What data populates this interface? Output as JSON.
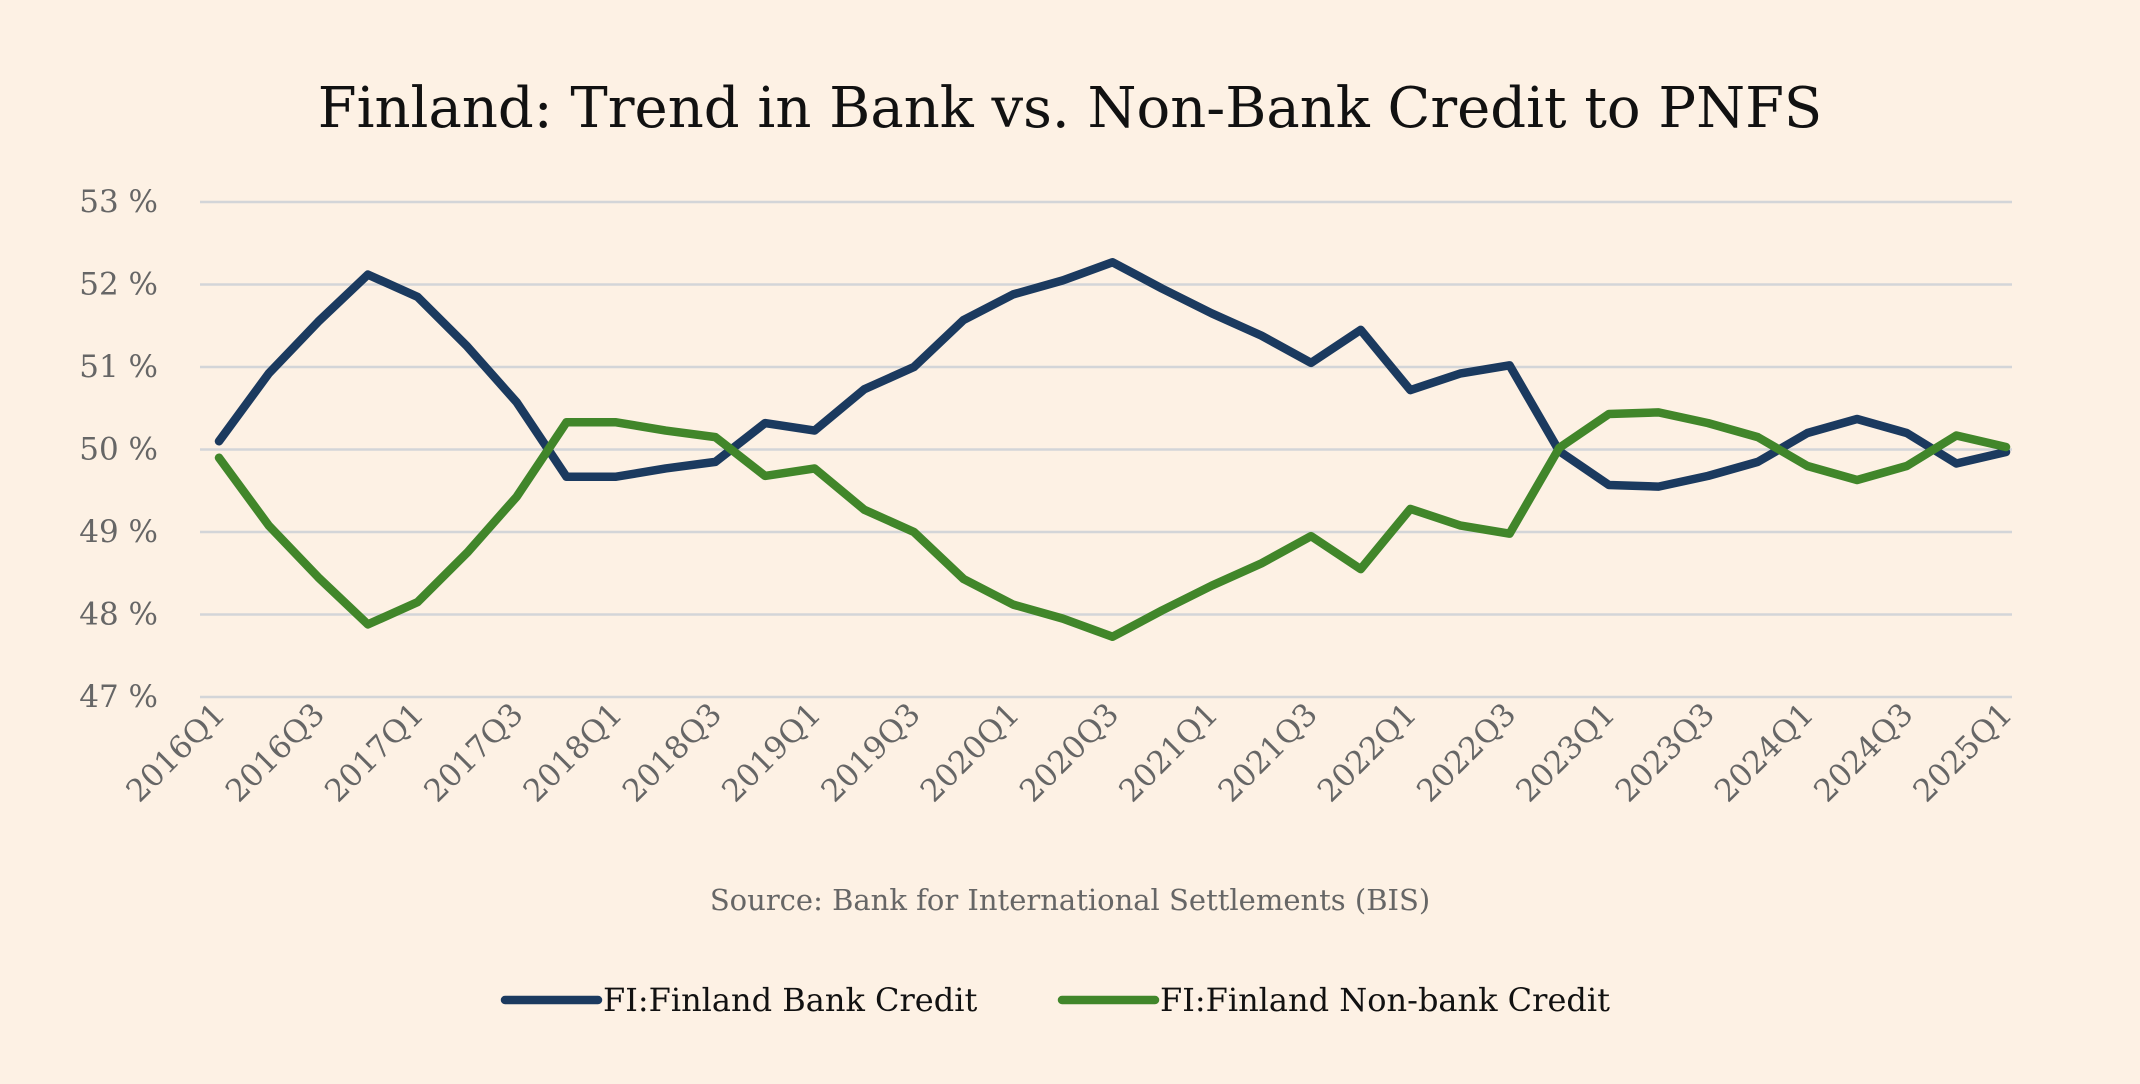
{
  "chart_data": {
    "type": "line",
    "title": "Finland: Trend in Bank vs. Non-Bank Credit to PNFS",
    "source": "Source: Bank for International Settlements (BIS)",
    "xlabel": "",
    "ylabel": "",
    "ylim": [
      47,
      53
    ],
    "yticks": [
      47,
      48,
      49,
      50,
      51,
      52,
      53
    ],
    "ytick_suffix": " %",
    "grid": true,
    "legend_position": "bottom",
    "categories": [
      "2016Q1",
      "2016Q2",
      "2016Q3",
      "2016Q4",
      "2017Q1",
      "2017Q2",
      "2017Q3",
      "2017Q4",
      "2018Q1",
      "2018Q2",
      "2018Q3",
      "2018Q4",
      "2019Q1",
      "2019Q2",
      "2019Q3",
      "2019Q4",
      "2020Q1",
      "2020Q2",
      "2020Q3",
      "2020Q4",
      "2021Q1",
      "2021Q2",
      "2021Q3",
      "2021Q4",
      "2022Q1",
      "2022Q2",
      "2022Q3",
      "2022Q4",
      "2023Q1",
      "2023Q2",
      "2023Q3",
      "2023Q4",
      "2024Q1",
      "2024Q2",
      "2024Q3",
      "2024Q4",
      "2025Q1"
    ],
    "xtick_labels": [
      "2016Q1",
      "2016Q3",
      "2017Q1",
      "2017Q3",
      "2018Q1",
      "2018Q3",
      "2019Q1",
      "2019Q3",
      "2020Q1",
      "2020Q3",
      "2021Q1",
      "2021Q3",
      "2022Q1",
      "2022Q3",
      "2023Q1",
      "2023Q3",
      "2024Q1",
      "2024Q3",
      "2025Q1"
    ],
    "series": [
      {
        "name": "FI:Finland Bank Credit",
        "color": "#1b3a5f",
        "values": [
          50.1,
          50.92,
          51.55,
          52.12,
          51.85,
          51.25,
          50.57,
          49.67,
          49.67,
          49.77,
          49.85,
          50.32,
          50.23,
          50.73,
          51.0,
          51.57,
          51.88,
          52.05,
          52.27,
          51.95,
          51.65,
          51.38,
          51.05,
          51.45,
          50.72,
          50.92,
          51.02,
          49.98,
          49.57,
          49.55,
          49.68,
          49.85,
          50.2,
          50.37,
          50.2,
          49.83,
          49.97
        ]
      },
      {
        "name": "FI:Finland Non-bank Credit",
        "color": "#41862a",
        "values": [
          49.9,
          49.08,
          48.45,
          47.88,
          48.15,
          48.75,
          49.43,
          50.33,
          50.33,
          50.23,
          50.15,
          49.68,
          49.77,
          49.27,
          49.0,
          48.43,
          48.12,
          47.95,
          47.73,
          48.05,
          48.35,
          48.62,
          48.95,
          48.55,
          49.28,
          49.08,
          48.98,
          50.02,
          50.43,
          50.45,
          50.32,
          50.15,
          49.8,
          49.63,
          49.8,
          50.17,
          50.03
        ]
      }
    ]
  }
}
